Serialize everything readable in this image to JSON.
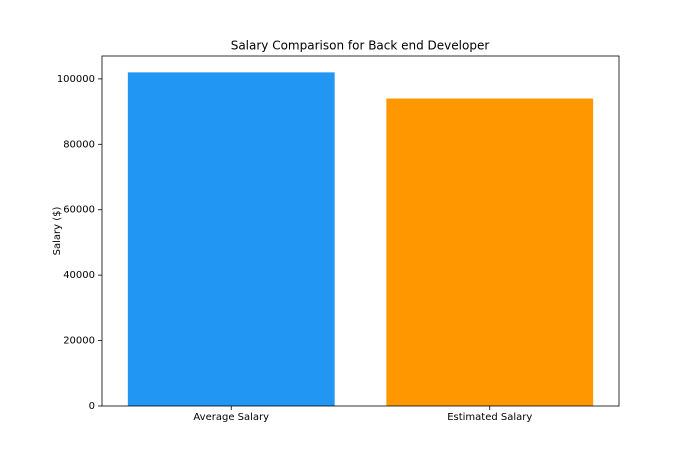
{
  "chart_data": {
    "type": "bar",
    "title": "Salary Comparison for Back end Developer",
    "ylabel": "Salary ($)",
    "categories": [
      "Average Salary",
      "Estimated Salary"
    ],
    "values": [
      102000,
      94000
    ],
    "colors": [
      "#2196f3",
      "#ff9800"
    ],
    "ylim": [
      0,
      107000
    ],
    "yticks": [
      0,
      20000,
      40000,
      60000,
      80000,
      100000
    ],
    "grid": false
  }
}
